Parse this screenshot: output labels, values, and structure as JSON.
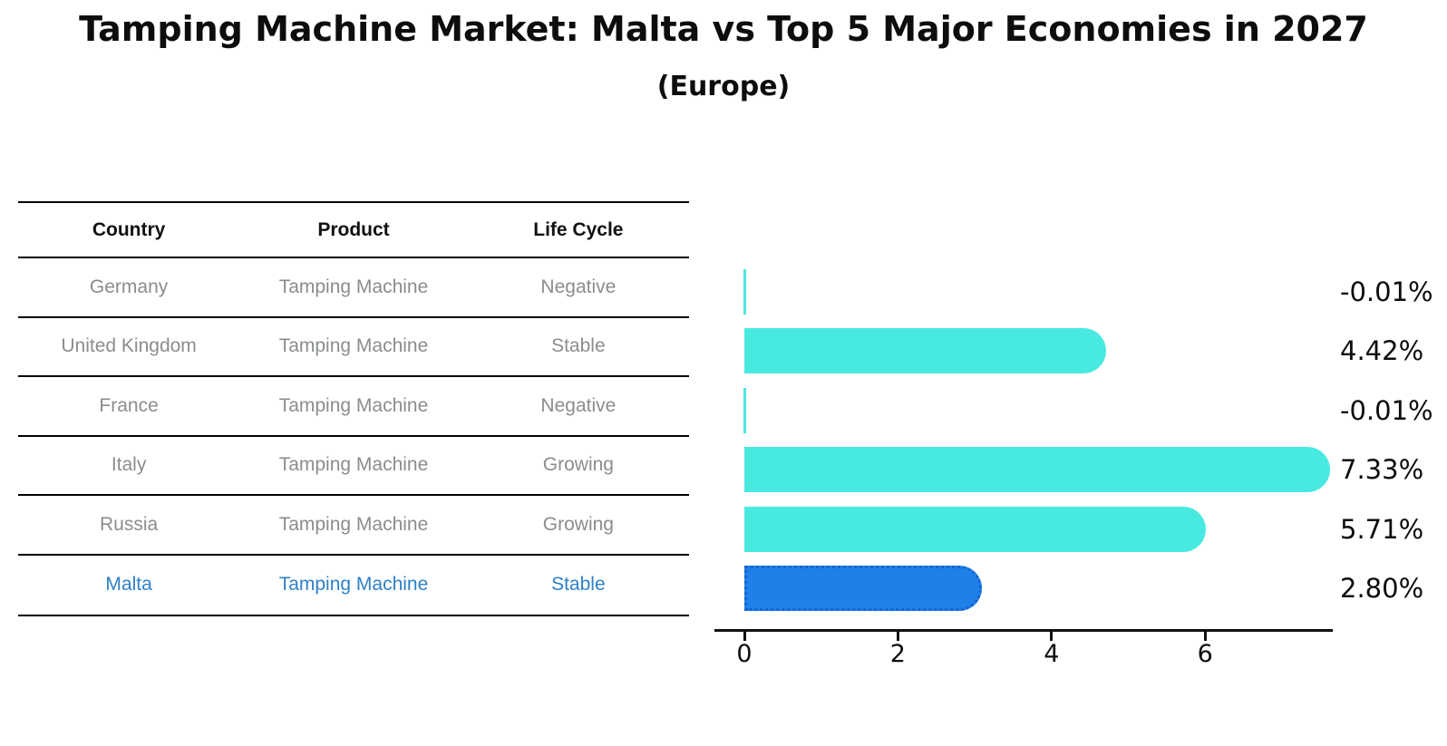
{
  "title": "Tamping Machine Market: Malta vs Top 5 Major Economies in 2027",
  "subtitle": "(Europe)",
  "table": {
    "columns": [
      "Country",
      "Product",
      "Life Cycle"
    ],
    "rows": [
      {
        "country": "Germany",
        "product": "Tamping Machine",
        "life_cycle": "Negative",
        "highlight": false
      },
      {
        "country": "United Kingdom",
        "product": "Tamping Machine",
        "life_cycle": "Stable",
        "highlight": false
      },
      {
        "country": "France",
        "product": "Tamping Machine",
        "life_cycle": "Negative",
        "highlight": false
      },
      {
        "country": "Italy",
        "product": "Tamping Machine",
        "life_cycle": "Growing",
        "highlight": false
      },
      {
        "country": "Russia",
        "product": "Tamping Machine",
        "life_cycle": "Growing",
        "highlight": false
      },
      {
        "country": "Malta",
        "product": "Tamping Machine",
        "life_cycle": "Stable",
        "highlight": true
      }
    ]
  },
  "chart_data": {
    "type": "bar",
    "orientation": "horizontal",
    "title": "Tamping Machine Market: Malta vs Top 5 Major Economies in 2027 (Europe)",
    "categories": [
      "Germany",
      "United Kingdom",
      "France",
      "Italy",
      "Russia",
      "Malta"
    ],
    "values": [
      -0.01,
      4.42,
      -0.01,
      7.33,
      5.71,
      2.8
    ],
    "value_labels": [
      "-0.01%",
      "4.42%",
      "-0.01%",
      "7.33%",
      "5.71%",
      "2.80%"
    ],
    "xticks": [
      0,
      2,
      4,
      6
    ],
    "xlim": [
      -0.4,
      7.65
    ],
    "grid": false,
    "legend": "none",
    "bar_color": "#48e9e1",
    "highlight_color": "#1e80e8",
    "highlight_border_color": "#1465d2",
    "highlight_index": 5,
    "axis_color": "#111111",
    "highlight_text_color": "#2e81c6"
  }
}
